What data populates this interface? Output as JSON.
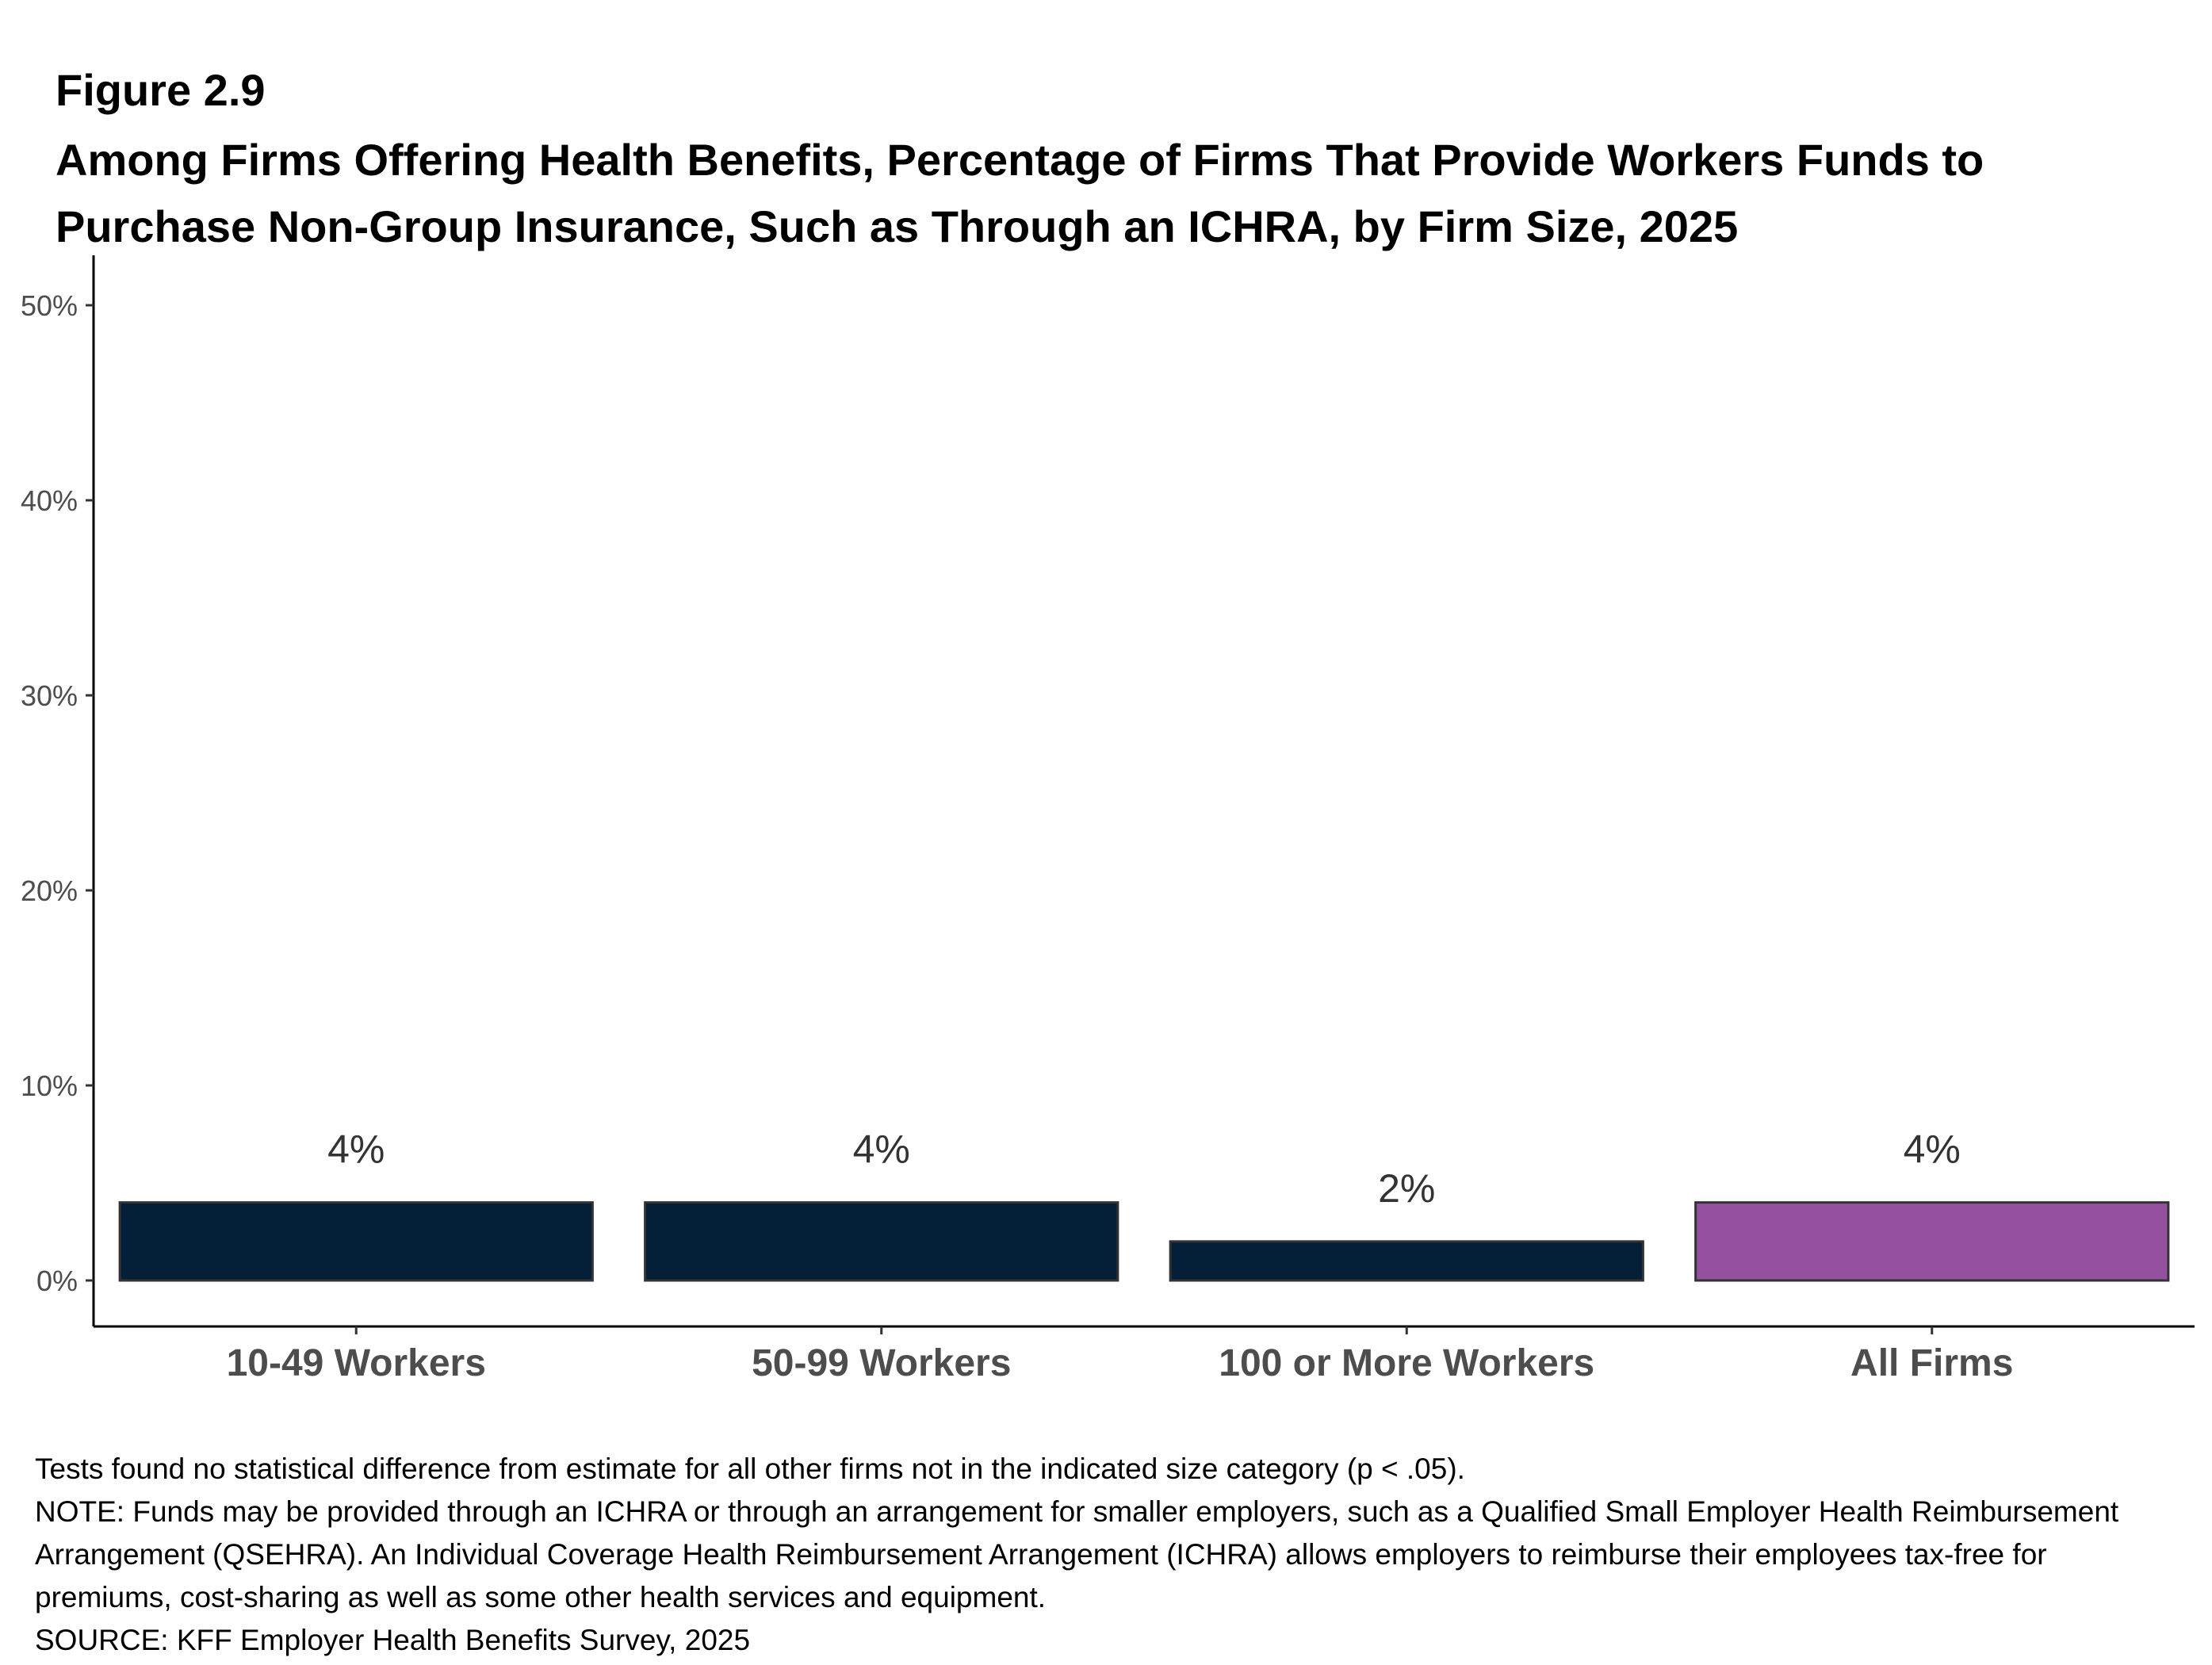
{
  "figure_label": "Figure 2.9",
  "title": "Among Firms Offering Health Benefits, Percentage of Firms That Provide Workers Funds to Purchase Non-Group Insurance, Such as Through an ICHRA, by Firm Size, 2025",
  "notes": {
    "test_note": "Tests found no statistical difference from estimate for all other firms not in the indicated size category (p < .05).",
    "note": "NOTE: Funds may be provided through an ICHRA or through an arrangement for smaller employers, such as a Qualified Small Employer Health Reimbursement Arrangement (QSEHRA). An Individual Coverage Health Reimbursement Arrangement (ICHRA) allows employers to reimburse their employees tax-free for premiums, cost-sharing as well as some other health services and equipment.",
    "source": "SOURCE: KFF Employer Health Benefits Survey, 2025"
  },
  "chart_data": {
    "type": "bar",
    "title": "Among Firms Offering Health Benefits, Percentage of Firms That Provide Workers Funds to Purchase Non-Group Insurance, Such as Through an ICHRA, by Firm Size, 2025",
    "categories": [
      "10-49 Workers",
      "50-99 Workers",
      "100 or More Workers",
      "All Firms"
    ],
    "values": [
      4,
      4,
      2,
      4
    ],
    "data_labels": [
      "4%",
      "4%",
      "2%",
      "4%"
    ],
    "colors": [
      "#041f38",
      "#041f38",
      "#041f38",
      "#94519f"
    ],
    "ylim": [
      0,
      50
    ],
    "yticks": [
      0,
      10,
      20,
      30,
      40,
      50
    ],
    "ytick_labels": [
      "0%",
      "10%",
      "20%",
      "30%",
      "40%",
      "50%"
    ],
    "xlabel": "",
    "ylabel": "",
    "grid": false,
    "legend": "none"
  }
}
